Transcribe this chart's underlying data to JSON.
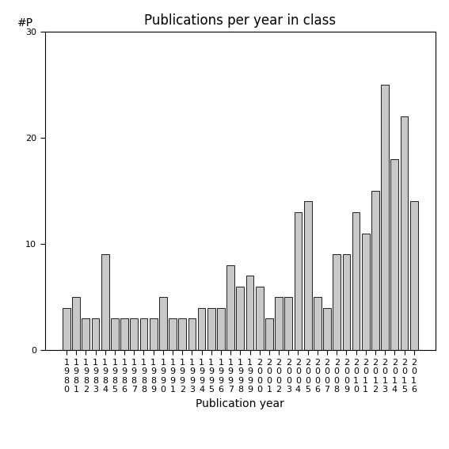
{
  "title": "Publications per year in class",
  "xlabel": "Publication year",
  "ylabel_text": "#P",
  "ylim": [
    0,
    30
  ],
  "yticks": [
    0,
    10,
    20,
    30
  ],
  "bar_color": "#c8c8c8",
  "bar_edge_color": "#000000",
  "years": [
    "1980",
    "1981",
    "1982",
    "1983",
    "1984",
    "1985",
    "1986",
    "1987",
    "1988",
    "1989",
    "1990",
    "1991",
    "1992",
    "1993",
    "1994",
    "1995",
    "1996",
    "1997",
    "1998",
    "1999",
    "2000",
    "2001",
    "2002",
    "2003",
    "2004",
    "2005",
    "2006",
    "2007",
    "2008",
    "2009",
    "2010",
    "2011",
    "2012",
    "2013",
    "2014",
    "2015",
    "2016"
  ],
  "values": [
    4,
    5,
    3,
    3,
    9,
    3,
    3,
    3,
    3,
    3,
    5,
    3,
    3,
    3,
    4,
    4,
    4,
    8,
    6,
    7,
    6,
    3,
    5,
    5,
    13,
    14,
    5,
    4,
    9,
    9,
    13,
    11,
    15,
    25,
    18,
    22,
    14
  ],
  "background_color": "#ffffff",
  "title_fontsize": 12,
  "label_fontsize": 10,
  "tick_fontsize": 8
}
